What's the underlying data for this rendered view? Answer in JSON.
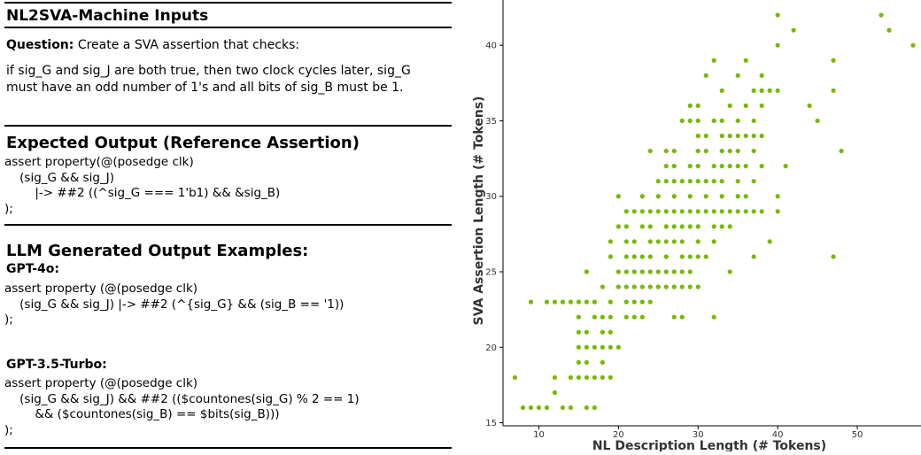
{
  "panel": {
    "title": "NL2SVA-Machine Inputs",
    "question_label": "Question:",
    "question_text_1": " Create a SVA assertion that checks:",
    "question_text_2": "if sig_G and sig_J are both true, then two clock cycles later, sig_G",
    "question_text_3": "must have an odd number of 1's and all bits of sig_B must be 1.",
    "expected_title": "Expected Output (Reference Assertion)",
    "expected_code": "assert property(@(posedge clk)\n    (sig_G && sig_J)\n        |-> ##2 ((^sig_G === 1'b1) && &sig_B)\n);",
    "llm_title": "LLM Generated Output Examples:",
    "gpt4o_label": "GPT-4o:",
    "gpt4o_code": "assert property (@(posedge clk)\n    (sig_G && sig_J) |-> ##2 (^{sig_G} && (sig_B == '1))\n);",
    "gpt35_label": "GPT-3.5-Turbo:",
    "gpt35_code": "assert property (@(posedge clk)\n    (sig_G && sig_J) && ##2 (($countones(sig_G) % 2 == 1)\n        && ($countones(sig_B) == $bits(sig_B)))\n);"
  },
  "chart_data": {
    "type": "scatter",
    "xlabel": "NL Description Length (# Tokens)",
    "ylabel": "SVA Assertion Length (# Tokens)",
    "xlim": [
      5.5,
      58
    ],
    "ylim": [
      14.8,
      43
    ],
    "xticks": [
      10,
      20,
      30,
      40,
      50
    ],
    "yticks": [
      15,
      20,
      25,
      30,
      35,
      40
    ],
    "color": "#76b900",
    "points": [
      [
        7,
        18
      ],
      [
        8,
        16
      ],
      [
        9,
        16
      ],
      [
        10,
        16
      ],
      [
        11,
        16
      ],
      [
        13,
        16
      ],
      [
        14,
        16
      ],
      [
        16,
        16
      ],
      [
        17,
        16
      ],
      [
        9,
        23
      ],
      [
        11,
        23
      ],
      [
        12,
        23
      ],
      [
        13,
        23
      ],
      [
        14,
        23
      ],
      [
        15,
        23
      ],
      [
        12,
        17
      ],
      [
        12,
        18
      ],
      [
        14,
        18
      ],
      [
        15,
        18
      ],
      [
        16,
        18
      ],
      [
        17,
        18
      ],
      [
        18,
        18
      ],
      [
        19,
        18
      ],
      [
        15,
        19
      ],
      [
        16,
        19
      ],
      [
        18,
        19
      ],
      [
        15,
        20
      ],
      [
        16,
        20
      ],
      [
        17,
        20
      ],
      [
        18,
        20
      ],
      [
        19,
        20
      ],
      [
        20,
        20
      ],
      [
        15,
        21
      ],
      [
        16,
        21
      ],
      [
        18,
        21
      ],
      [
        19,
        21
      ],
      [
        15,
        22
      ],
      [
        17,
        22
      ],
      [
        18,
        22
      ],
      [
        19,
        22
      ],
      [
        21,
        22
      ],
      [
        22,
        22
      ],
      [
        23,
        22
      ],
      [
        27,
        22
      ],
      [
        28,
        22
      ],
      [
        32,
        22
      ],
      [
        16,
        23
      ],
      [
        17,
        23
      ],
      [
        19,
        23
      ],
      [
        21,
        23
      ],
      [
        22,
        23
      ],
      [
        23,
        23
      ],
      [
        24,
        23
      ],
      [
        18,
        24
      ],
      [
        20,
        24
      ],
      [
        21,
        24
      ],
      [
        22,
        24
      ],
      [
        23,
        24
      ],
      [
        24,
        24
      ],
      [
        25,
        24
      ],
      [
        26,
        24
      ],
      [
        27,
        24
      ],
      [
        28,
        24
      ],
      [
        29,
        24
      ],
      [
        30,
        24
      ],
      [
        16,
        25
      ],
      [
        20,
        25
      ],
      [
        21,
        25
      ],
      [
        22,
        25
      ],
      [
        23,
        25
      ],
      [
        24,
        25
      ],
      [
        25,
        25
      ],
      [
        26,
        25
      ],
      [
        27,
        25
      ],
      [
        28,
        25
      ],
      [
        29,
        25
      ],
      [
        34,
        25
      ],
      [
        19,
        26
      ],
      [
        21,
        26
      ],
      [
        22,
        26
      ],
      [
        23,
        26
      ],
      [
        24,
        26
      ],
      [
        26,
        26
      ],
      [
        28,
        26
      ],
      [
        29,
        26
      ],
      [
        30,
        26
      ],
      [
        31,
        26
      ],
      [
        37,
        26
      ],
      [
        47,
        26
      ],
      [
        19,
        27
      ],
      [
        21,
        27
      ],
      [
        22,
        27
      ],
      [
        24,
        27
      ],
      [
        25,
        27
      ],
      [
        26,
        27
      ],
      [
        27,
        27
      ],
      [
        28,
        27
      ],
      [
        30,
        27
      ],
      [
        32,
        27
      ],
      [
        39,
        27
      ],
      [
        20,
        28
      ],
      [
        21,
        28
      ],
      [
        23,
        28
      ],
      [
        24,
        28
      ],
      [
        26,
        28
      ],
      [
        27,
        28
      ],
      [
        28,
        28
      ],
      [
        29,
        28
      ],
      [
        30,
        28
      ],
      [
        32,
        28
      ],
      [
        33,
        28
      ],
      [
        34,
        28
      ],
      [
        21,
        29
      ],
      [
        22,
        29
      ],
      [
        23,
        29
      ],
      [
        24,
        29
      ],
      [
        25,
        29
      ],
      [
        26,
        29
      ],
      [
        27,
        29
      ],
      [
        28,
        29
      ],
      [
        29,
        29
      ],
      [
        30,
        29
      ],
      [
        31,
        29
      ],
      [
        32,
        29
      ],
      [
        33,
        29
      ],
      [
        34,
        29
      ],
      [
        35,
        29
      ],
      [
        36,
        29
      ],
      [
        37,
        29
      ],
      [
        38,
        29
      ],
      [
        40,
        29
      ],
      [
        20,
        30
      ],
      [
        23,
        30
      ],
      [
        25,
        30
      ],
      [
        27,
        30
      ],
      [
        29,
        30
      ],
      [
        31,
        30
      ],
      [
        33,
        30
      ],
      [
        35,
        30
      ],
      [
        36,
        30
      ],
      [
        40,
        30
      ],
      [
        25,
        31
      ],
      [
        26,
        31
      ],
      [
        27,
        31
      ],
      [
        28,
        31
      ],
      [
        29,
        31
      ],
      [
        30,
        31
      ],
      [
        31,
        31
      ],
      [
        32,
        31
      ],
      [
        33,
        31
      ],
      [
        35,
        31
      ],
      [
        37,
        31
      ],
      [
        26,
        32
      ],
      [
        27,
        32
      ],
      [
        29,
        32
      ],
      [
        30,
        32
      ],
      [
        32,
        32
      ],
      [
        33,
        32
      ],
      [
        34,
        32
      ],
      [
        35,
        32
      ],
      [
        36,
        32
      ],
      [
        38,
        32
      ],
      [
        41,
        32
      ],
      [
        24,
        33
      ],
      [
        26,
        33
      ],
      [
        27,
        33
      ],
      [
        30,
        33
      ],
      [
        31,
        33
      ],
      [
        33,
        33
      ],
      [
        34,
        33
      ],
      [
        35,
        33
      ],
      [
        37,
        33
      ],
      [
        48,
        33
      ],
      [
        30,
        34
      ],
      [
        31,
        34
      ],
      [
        33,
        34
      ],
      [
        34,
        34
      ],
      [
        35,
        34
      ],
      [
        36,
        34
      ],
      [
        37,
        34
      ],
      [
        38,
        34
      ],
      [
        28,
        35
      ],
      [
        29,
        35
      ],
      [
        30,
        35
      ],
      [
        32,
        35
      ],
      [
        33,
        35
      ],
      [
        35,
        35
      ],
      [
        37,
        35
      ],
      [
        45,
        35
      ],
      [
        29,
        36
      ],
      [
        30,
        36
      ],
      [
        34,
        36
      ],
      [
        36,
        36
      ],
      [
        38,
        36
      ],
      [
        44,
        36
      ],
      [
        33,
        37
      ],
      [
        37,
        37
      ],
      [
        38,
        37
      ],
      [
        39,
        37
      ],
      [
        40,
        37
      ],
      [
        47,
        37
      ],
      [
        31,
        38
      ],
      [
        35,
        38
      ],
      [
        38,
        38
      ],
      [
        32,
        39
      ],
      [
        36,
        39
      ],
      [
        47,
        39
      ],
      [
        40,
        40
      ],
      [
        57,
        40
      ],
      [
        42,
        41
      ],
      [
        54,
        41
      ],
      [
        40,
        42
      ],
      [
        53,
        42
      ]
    ]
  }
}
